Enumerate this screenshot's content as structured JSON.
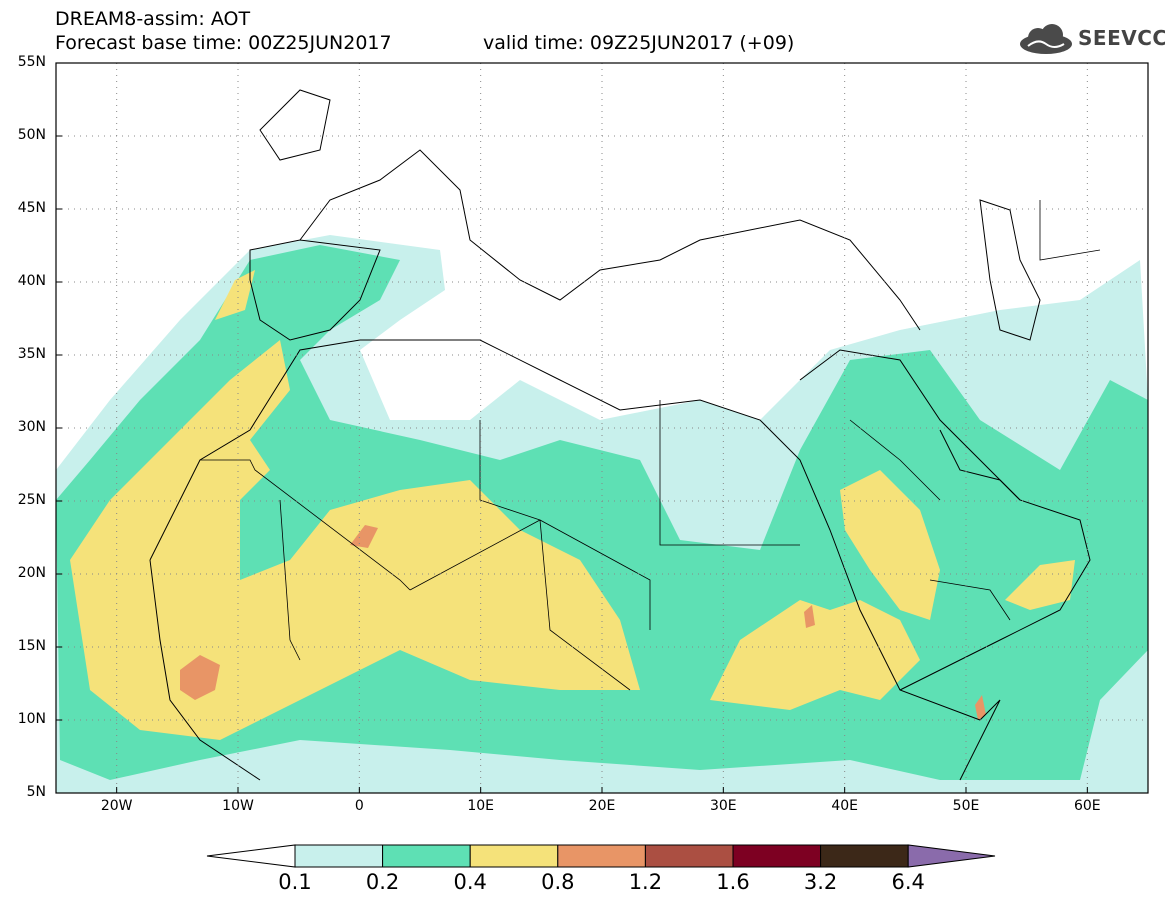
{
  "header": {
    "title": "DREAM8-assim: AOT",
    "base_time": "Forecast base time: 00Z25JUN2017",
    "valid_time": "valid time: 09Z25JUN2017 (+09)"
  },
  "logo": {
    "text": "SEEVCCC",
    "icon": "cloud-icon"
  },
  "map": {
    "lat_labels": [
      "55N",
      "50N",
      "45N",
      "40N",
      "35N",
      "30N",
      "25N",
      "20N",
      "15N",
      "10N",
      "5N"
    ],
    "lon_labels": [
      "20W",
      "10W",
      "0",
      "10E",
      "20E",
      "30E",
      "40E",
      "50E",
      "60E"
    ],
    "lat_range": [
      5,
      55
    ],
    "lon_range": [
      -25,
      65
    ],
    "grid": "dotted"
  },
  "colorbar": {
    "levels": [
      "0.1",
      "0.2",
      "0.4",
      "0.8",
      "1.2",
      "1.6",
      "3.2",
      "6.4"
    ],
    "colors": [
      "#ffffff",
      "#c8f0ec",
      "#5ee0b4",
      "#f5e27a",
      "#e89566",
      "#ab4f42",
      "#7d0022",
      "#3c2818",
      "#8a6bab"
    ]
  }
}
